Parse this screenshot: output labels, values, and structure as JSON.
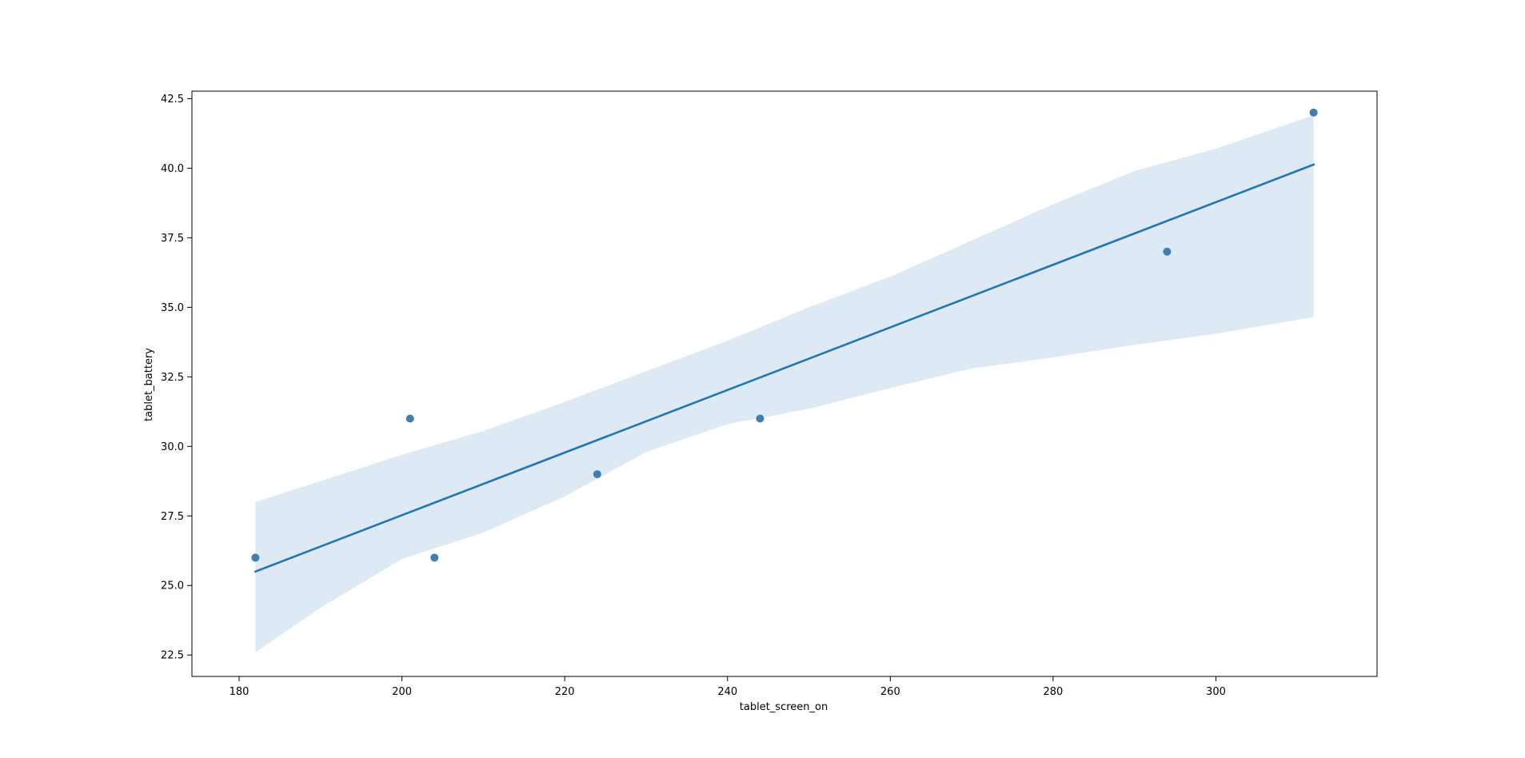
{
  "chart_data": {
    "type": "scatter",
    "title": "",
    "xlabel": "tablet_screen_on",
    "ylabel": "tablet_battery",
    "xlim": [
      174.2,
      319.8
    ],
    "ylim": [
      21.73,
      42.77
    ],
    "xticks": [
      180,
      200,
      220,
      240,
      260,
      280,
      300
    ],
    "yticks": [
      22.5,
      25.0,
      27.5,
      30.0,
      32.5,
      35.0,
      37.5,
      40.0,
      42.5
    ],
    "xtick_labels": [
      "180",
      "200",
      "220",
      "240",
      "260",
      "280",
      "300"
    ],
    "ytick_labels": [
      "22.5",
      "25.0",
      "27.5",
      "30.0",
      "32.5",
      "35.0",
      "37.5",
      "40.0",
      "42.5"
    ],
    "grid": false,
    "legend": "none",
    "points": [
      {
        "x": 182,
        "y": 26
      },
      {
        "x": 201,
        "y": 31
      },
      {
        "x": 204,
        "y": 26
      },
      {
        "x": 224,
        "y": 29
      },
      {
        "x": 244,
        "y": 31
      },
      {
        "x": 294,
        "y": 37
      },
      {
        "x": 312,
        "y": 42
      }
    ],
    "regression_line": {
      "x": [
        182,
        312
      ],
      "y": [
        25.5,
        40.13
      ]
    },
    "confidence_band": {
      "x": [
        182,
        190,
        200,
        210,
        220,
        230,
        240,
        250,
        260,
        270,
        280,
        290,
        300,
        312
      ],
      "upper": [
        28.0,
        28.75,
        29.7,
        30.55,
        31.6,
        32.7,
        33.8,
        35.0,
        36.1,
        37.4,
        38.7,
        39.9,
        40.7,
        41.9
      ],
      "lower": [
        22.6,
        24.2,
        25.95,
        26.9,
        28.2,
        29.8,
        30.8,
        31.35,
        32.1,
        32.8,
        33.2,
        33.65,
        34.05,
        34.65
      ]
    },
    "colors": {
      "point": "#3d7fb3",
      "line": "#1f77b4",
      "band": "#dde9f4",
      "axes": "#000000"
    }
  }
}
